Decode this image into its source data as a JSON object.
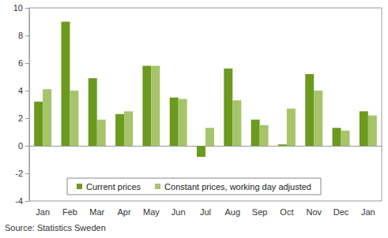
{
  "chart_data": {
    "type": "bar",
    "categories": [
      "Jan",
      "Feb",
      "Mar",
      "Apr",
      "May",
      "Jun",
      "Jul",
      "Aug",
      "Sep",
      "Oct",
      "Nov",
      "Dec",
      "Jan"
    ],
    "series": [
      {
        "name": "Current prices",
        "color": "#6b9a1f",
        "values": [
          3.2,
          9.0,
          4.9,
          2.3,
          5.8,
          3.5,
          -0.8,
          5.6,
          1.9,
          0.1,
          5.2,
          1.3,
          2.5
        ]
      },
      {
        "name": "Constant prices, working day adjusted",
        "color": "#a6c46a",
        "values": [
          4.1,
          4.0,
          1.9,
          2.5,
          5.8,
          3.4,
          1.3,
          3.3,
          1.5,
          2.7,
          4.0,
          1.1,
          2.2
        ]
      }
    ],
    "ylim": [
      -4,
      10
    ],
    "yticks": [
      -4,
      -2,
      0,
      2,
      4,
      6,
      8,
      10
    ],
    "grid": false,
    "legend": "bottom",
    "annotations": [
      "Source: Statistics Sweden"
    ]
  }
}
